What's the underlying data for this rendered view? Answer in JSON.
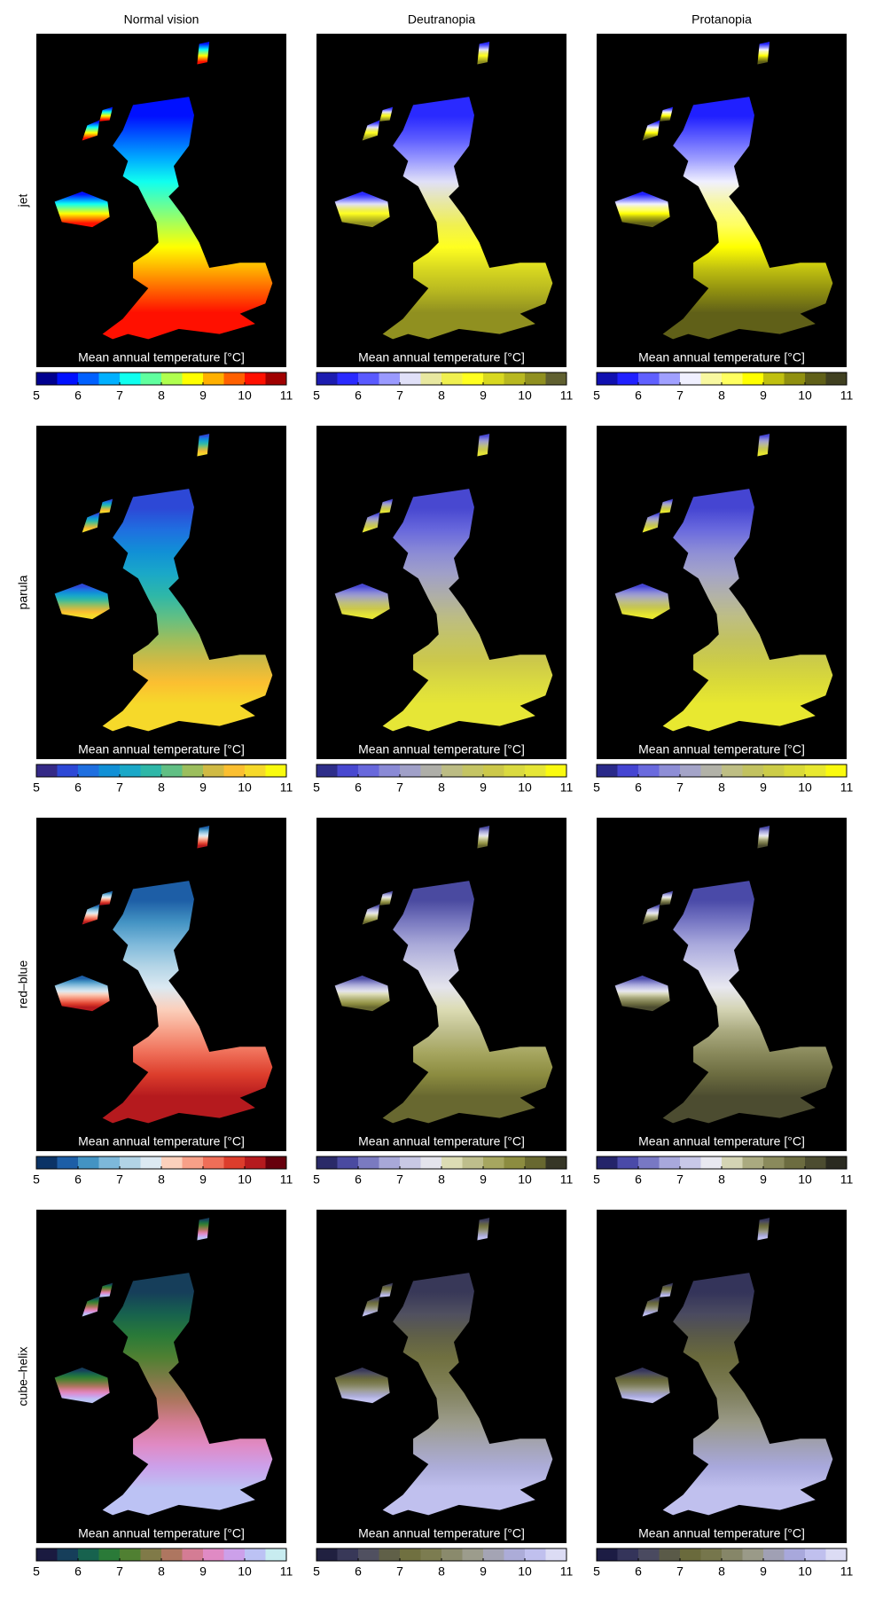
{
  "column_titles": [
    "Normal vision",
    "Deutranopia",
    "Protanopia"
  ],
  "caption": "Mean annual temperature  [°C]",
  "colorbar_ticks": [
    5,
    6,
    7,
    8,
    9,
    10,
    11
  ],
  "rows": [
    {
      "label": "jet",
      "panels": [
        {
          "colors": [
            "#00008f",
            "#0010ff",
            "#0060ff",
            "#00b0ff",
            "#10ffef",
            "#60ff9f",
            "#b0ff4f",
            "#ffff00",
            "#ffb000",
            "#ff6000",
            "#ff1000",
            "#a00000"
          ]
        },
        {
          "colors": [
            "#1c1cb0",
            "#2a2aff",
            "#5a5aff",
            "#9a9aff",
            "#e0e0f8",
            "#e8e8a0",
            "#f0f050",
            "#ffff20",
            "#d8d820",
            "#b8b820",
            "#909020",
            "#606030"
          ]
        },
        {
          "colors": [
            "#1010b0",
            "#2020ff",
            "#6060ff",
            "#a0a0ff",
            "#f0f0ff",
            "#f8f8a0",
            "#ffff60",
            "#ffff00",
            "#c0c010",
            "#909010",
            "#606018",
            "#404020"
          ]
        }
      ]
    },
    {
      "label": "parula",
      "panels": [
        {
          "colors": [
            "#352a87",
            "#2d48d6",
            "#1f6fe0",
            "#1190d6",
            "#1aa8c8",
            "#2eb7a8",
            "#61bf84",
            "#9cbe5d",
            "#d0ba44",
            "#fbbf31",
            "#f6d92a",
            "#f9fb0e"
          ]
        },
        {
          "colors": [
            "#2e2e8a",
            "#4848d0",
            "#6868dc",
            "#8a8ad6",
            "#a0a0c8",
            "#aeaea8",
            "#bcbc84",
            "#c4c464",
            "#ccc84a",
            "#dada40",
            "#e6e636",
            "#fafa10"
          ]
        },
        {
          "colors": [
            "#2a2a8a",
            "#4545d2",
            "#6a6ade",
            "#8e8ed6",
            "#a4a4c8",
            "#b2b2a8",
            "#bebe84",
            "#c2c260",
            "#cccc48",
            "#dada38",
            "#e8e830",
            "#fafa0e"
          ]
        }
      ]
    },
    {
      "label": "red–blue",
      "panels": [
        {
          "colors": [
            "#0b3366",
            "#1d5ea6",
            "#4393c3",
            "#7db8da",
            "#b2d4e6",
            "#dce9f2",
            "#fbd0bc",
            "#f7a088",
            "#ef6e58",
            "#dc3d2c",
            "#b51a1e",
            "#67000d"
          ]
        },
        {
          "colors": [
            "#2a2a68",
            "#4a4aa0",
            "#7a7ac0",
            "#a8a8d8",
            "#c8c8e4",
            "#e4e4ec",
            "#dcdcb4",
            "#bebe8c",
            "#a6a660",
            "#8c8c40",
            "#686830",
            "#363626"
          ]
        },
        {
          "colors": [
            "#24246a",
            "#4a4aa8",
            "#7878c4",
            "#a8a8dc",
            "#c8c8e8",
            "#e8e8f0",
            "#d4d4b4",
            "#aaaa80",
            "#8a8a5c",
            "#6c6c40",
            "#4c4c30",
            "#2a2a20"
          ]
        }
      ]
    },
    {
      "label": "cube–helix",
      "panels": [
        {
          "colors": [
            "#1a1a40",
            "#163e5a",
            "#17624e",
            "#2a7a38",
            "#508032",
            "#807a48",
            "#ae7660",
            "#d47c94",
            "#e08ac4",
            "#cca0ea",
            "#bcc2f4",
            "#c8ecf0"
          ]
        },
        {
          "colors": [
            "#202040",
            "#383858",
            "#505060",
            "#606048",
            "#707040",
            "#7c7c50",
            "#8a8a6c",
            "#9c9c8c",
            "#a4a4b4",
            "#acacd8",
            "#c0c0ee",
            "#dcdcf4"
          ]
        },
        {
          "colors": [
            "#1c1c44",
            "#34345a",
            "#4a4a60",
            "#5a5a48",
            "#6a6a3c",
            "#76764c",
            "#868668",
            "#9a9a88",
            "#a0a0b4",
            "#a8a8dc",
            "#c0c0ee",
            "#dcdcf4"
          ]
        }
      ]
    }
  ]
}
